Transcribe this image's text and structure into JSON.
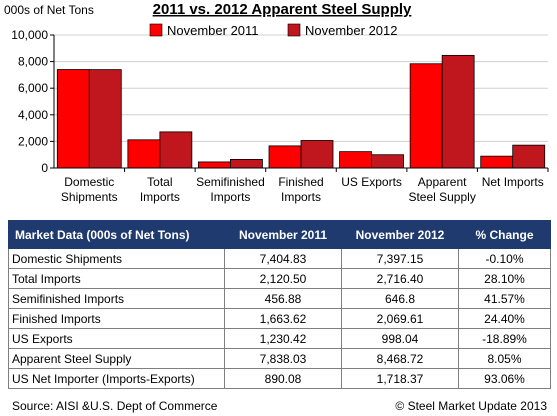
{
  "chart_data": {
    "type": "bar",
    "title": "2011 vs. 2012 Apparent Steel Supply",
    "ylabel": "000s of Net Tons",
    "ylim": [
      0,
      10000
    ],
    "yticks": [
      "0",
      "2,000",
      "4,000",
      "6,000",
      "8,000",
      "10,000"
    ],
    "categories": [
      [
        "Domestic",
        "Shipments"
      ],
      [
        "Total",
        "Imports"
      ],
      [
        "Semifinished",
        "Imports"
      ],
      [
        "Finished",
        "Imports"
      ],
      [
        "US Exports"
      ],
      [
        "Apparent",
        "Steel Supply"
      ],
      [
        "Net Imports"
      ]
    ],
    "series": [
      {
        "name": "November 2011",
        "color": "#ff0000",
        "values": [
          7404.83,
          2120.5,
          456.88,
          1663.62,
          1230.42,
          7838.03,
          890.08
        ]
      },
      {
        "name": "November 2012",
        "color": "#c0161e",
        "values": [
          7397.15,
          2716.4,
          646.8,
          2069.61,
          998.04,
          8468.72,
          1718.37
        ]
      }
    ],
    "legend": "top"
  },
  "table": {
    "headers": [
      "Market Data (000s of Net Tons)",
      "November 2011",
      "November 2012",
      "% Change"
    ],
    "rows": [
      [
        "Domestic Shipments",
        "7,404.83",
        "7,397.15",
        "-0.10%"
      ],
      [
        "Total Imports",
        "2,120.50",
        "2,716.40",
        "28.10%"
      ],
      [
        "Semifinished Imports",
        "456.88",
        "646.8",
        "41.57%"
      ],
      [
        "Finished Imports",
        "1,663.62",
        "2,069.61",
        "24.40%"
      ],
      [
        "US Exports",
        "1,230.42",
        "998.04",
        "-18.89%"
      ],
      [
        "Apparent Steel Supply",
        "7,838.03",
        "8,468.72",
        "8.05%"
      ],
      [
        "US Net Importer (Imports-Exports)",
        "890.08",
        "1,718.37",
        "93.06%"
      ]
    ],
    "header_color": "#1f3a6e"
  },
  "footer": {
    "source": "Source:  AISI &U.S. Dept of Commerce",
    "copyright": "©   Steel Market Update 2013"
  }
}
